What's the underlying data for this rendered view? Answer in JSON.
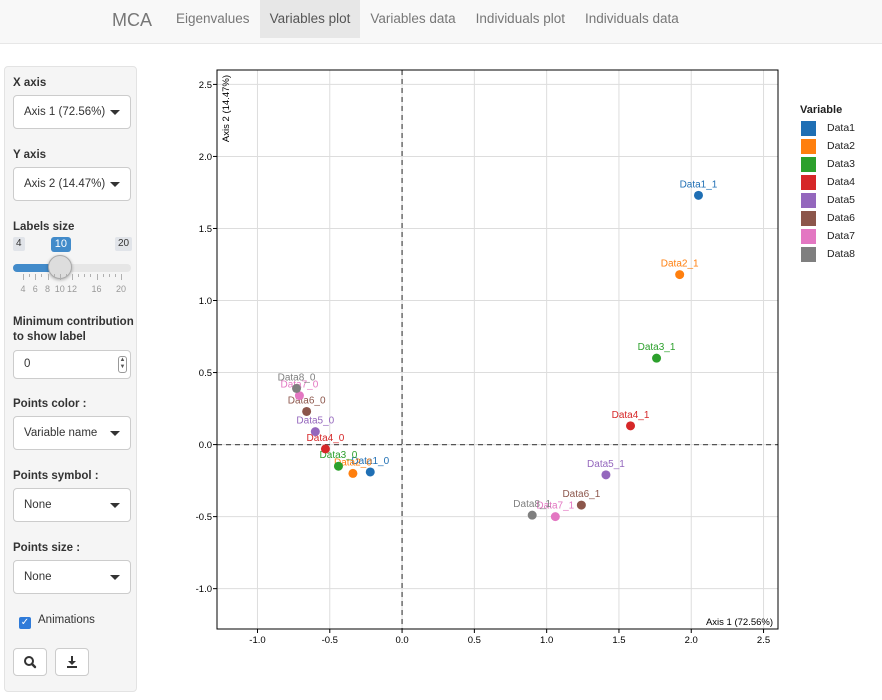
{
  "navbar": {
    "brand": "MCA",
    "tabs": [
      {
        "label": "Eigenvalues",
        "active": false
      },
      {
        "label": "Variables plot",
        "active": true
      },
      {
        "label": "Variables data",
        "active": false
      },
      {
        "label": "Individuals plot",
        "active": false
      },
      {
        "label": "Individuals data",
        "active": false
      }
    ]
  },
  "sidebar": {
    "x_axis": {
      "label": "X axis",
      "value": "Axis 1 (72.56%)"
    },
    "y_axis": {
      "label": "Y axis",
      "value": "Axis 2 (14.47%)"
    },
    "labels_size": {
      "label": "Labels size",
      "min": "4",
      "max": "20",
      "value": 10,
      "tick_labels": [
        "4",
        "6",
        "8",
        "10",
        "12",
        "16",
        "20"
      ]
    },
    "min_contrib": {
      "label_line1": "Minimum contribution",
      "label_line2": "to show label",
      "value": "0"
    },
    "points_color": {
      "label": "Points color :",
      "value": "Variable name"
    },
    "points_symbol": {
      "label": "Points symbol :",
      "value": "None"
    },
    "points_size": {
      "label": "Points size :",
      "value": "None"
    },
    "animations": {
      "label": "Animations",
      "checked": true
    },
    "buttons": [
      {
        "icon": "search-icon"
      },
      {
        "icon": "download-icon"
      }
    ]
  },
  "chart_data": {
    "type": "scatter",
    "title": "",
    "xlabel": "Axis 1 (72.56%)",
    "ylabel": "Axis 2 (14.47%)",
    "xlim": [
      -1.28,
      2.6
    ],
    "ylim": [
      -1.28,
      2.6
    ],
    "xticks": [
      "-1.0",
      "-0.5",
      "0.0",
      "0.5",
      "1.0",
      "1.5",
      "2.0",
      "2.5"
    ],
    "yticks": [
      "-1.0",
      "-0.5",
      "0.0",
      "0.5",
      "1.0",
      "1.5",
      "2.0",
      "2.5"
    ],
    "grid": true,
    "zero_lines": true,
    "legend_title": "Variable",
    "legend_position": "right",
    "series": [
      {
        "name": "Data1",
        "color": "#1f6fb4",
        "points": [
          {
            "label": "Data1_1",
            "x": 2.05,
            "y": 1.73
          },
          {
            "label": "Data1_0",
            "x": -0.22,
            "y": -0.19
          }
        ]
      },
      {
        "name": "Data2",
        "color": "#ff7f0e",
        "points": [
          {
            "label": "Data2_1",
            "x": 1.92,
            "y": 1.18
          },
          {
            "label": "Data2_0",
            "x": -0.34,
            "y": -0.2
          }
        ]
      },
      {
        "name": "Data3",
        "color": "#2ca02c",
        "points": [
          {
            "label": "Data3_1",
            "x": 1.76,
            "y": 0.6
          },
          {
            "label": "Data3_0",
            "x": -0.44,
            "y": -0.15
          }
        ]
      },
      {
        "name": "Data4",
        "color": "#d62728",
        "points": [
          {
            "label": "Data4_1",
            "x": 1.58,
            "y": 0.13
          },
          {
            "label": "Data4_0",
            "x": -0.53,
            "y": -0.03
          }
        ]
      },
      {
        "name": "Data5",
        "color": "#9467bd",
        "points": [
          {
            "label": "Data5_1",
            "x": 1.41,
            "y": -0.21
          },
          {
            "label": "Data5_0",
            "x": -0.6,
            "y": 0.09
          }
        ]
      },
      {
        "name": "Data6",
        "color": "#8c564b",
        "points": [
          {
            "label": "Data6_1",
            "x": 1.24,
            "y": -0.42
          },
          {
            "label": "Data6_0",
            "x": -0.66,
            "y": 0.23
          }
        ]
      },
      {
        "name": "Data7",
        "color": "#e377c2",
        "points": [
          {
            "label": "Data7_1",
            "x": 1.06,
            "y": -0.5
          },
          {
            "label": "Data7_0",
            "x": -0.71,
            "y": 0.34
          }
        ]
      },
      {
        "name": "Data8",
        "color": "#7f7f7f",
        "points": [
          {
            "label": "Data8_1",
            "x": 0.9,
            "y": -0.49
          },
          {
            "label": "Data8_0",
            "x": -0.73,
            "y": 0.39
          }
        ]
      }
    ]
  }
}
